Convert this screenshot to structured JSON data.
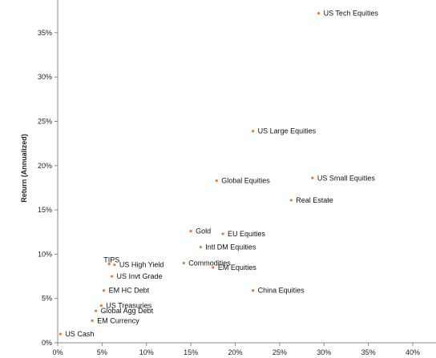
{
  "chart_data": {
    "type": "scatter",
    "title": "",
    "xlabel": "",
    "ylabel": "Return (Annualized)",
    "xlim": [
      0,
      40
    ],
    "ylim": [
      0,
      37
    ],
    "grid": false,
    "x_ticks": [
      "0%",
      "5%",
      "10%",
      "15%",
      "20%",
      "25%",
      "30%",
      "35%",
      "40%"
    ],
    "y_ticks": [
      "0%",
      "5%",
      "10%",
      "15%",
      "20%",
      "25%",
      "30%",
      "35%"
    ],
    "point_color": "#e07b39",
    "points": [
      {
        "label": "US Tech Equities",
        "x": 29.4,
        "y": 37.2
      },
      {
        "label": "US Large Equities",
        "x": 22.0,
        "y": 23.9
      },
      {
        "label": "Global Equities",
        "x": 17.9,
        "y": 18.3
      },
      {
        "label": "US Small Equities",
        "x": 28.7,
        "y": 18.6
      },
      {
        "label": "Real Estate",
        "x": 26.3,
        "y": 16.1
      },
      {
        "label": "Gold",
        "x": 15.0,
        "y": 12.6
      },
      {
        "label": "EU Equities",
        "x": 18.6,
        "y": 12.3
      },
      {
        "label": "Intl DM Equities",
        "x": 16.1,
        "y": 10.8
      },
      {
        "label": "Commodities",
        "x": 14.2,
        "y": 9.0
      },
      {
        "label": "EM Equities",
        "x": 17.5,
        "y": 8.5
      },
      {
        "label": "TIPS",
        "x": 5.8,
        "y": 8.9
      },
      {
        "label": "US High Yield",
        "x": 6.4,
        "y": 8.8
      },
      {
        "label": "US Invt Grade",
        "x": 6.1,
        "y": 7.5
      },
      {
        "label": "EM HC Debt",
        "x": 5.2,
        "y": 5.9
      },
      {
        "label": "China Equities",
        "x": 22.0,
        "y": 5.9
      },
      {
        "label": "US Treasuries",
        "x": 4.9,
        "y": 4.2
      },
      {
        "label": "Global Agg Debt",
        "x": 4.3,
        "y": 3.6
      },
      {
        "label": "EM Currency",
        "x": 3.9,
        "y": 2.5
      },
      {
        "label": "US Cash",
        "x": 0.3,
        "y": 1.0
      }
    ]
  }
}
